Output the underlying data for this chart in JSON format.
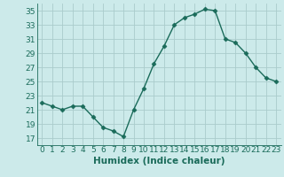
{
  "x": [
    0,
    1,
    2,
    3,
    4,
    5,
    6,
    7,
    8,
    9,
    10,
    11,
    12,
    13,
    14,
    15,
    16,
    17,
    18,
    19,
    20,
    21,
    22,
    23
  ],
  "y": [
    22,
    21.5,
    21,
    21.5,
    21.5,
    20,
    18.5,
    18,
    17.2,
    21,
    24,
    27.5,
    30,
    33,
    34,
    34.5,
    35.2,
    35,
    31,
    30.5,
    29,
    27,
    25.5,
    25
  ],
  "line_color": "#1a6b5a",
  "marker": "D",
  "markersize": 2.5,
  "linewidth": 1.0,
  "xlabel": "Humidex (Indice chaleur)",
  "ylim": [
    16,
    36
  ],
  "xlim": [
    -0.5,
    23.5
  ],
  "yticks": [
    17,
    19,
    21,
    23,
    25,
    27,
    29,
    31,
    33,
    35
  ],
  "xticks": [
    0,
    1,
    2,
    3,
    4,
    5,
    6,
    7,
    8,
    9,
    10,
    11,
    12,
    13,
    14,
    15,
    16,
    17,
    18,
    19,
    20,
    21,
    22,
    23
  ],
  "bg_color": "#cceaea",
  "grid_color": "#aacccc",
  "line_dark": "#1a6b5a",
  "font_size": 6.5,
  "xlabel_fontsize": 7.5
}
